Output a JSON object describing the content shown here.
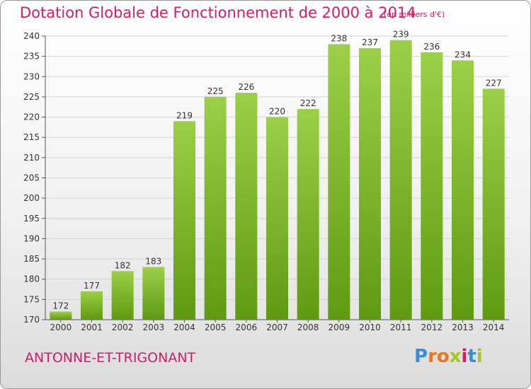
{
  "header": {
    "title": "Dotation Globale de Fonctionnement de 2000 à 2014",
    "subtitle": "(en milliers d'€)"
  },
  "footer": {
    "commune": "ANTONNE-ET-TRIGONANT",
    "logo_letters": [
      "P",
      "r",
      "o",
      "x",
      "i",
      "t",
      "i"
    ]
  },
  "colors": {
    "title": "#cc1f6a",
    "bar_top": "#9ccf48",
    "bar_bottom": "#5f9a12",
    "logo": [
      "#3a8fd4",
      "#e8781f",
      "#e8781f",
      "#a6c82a",
      "#cc1f6a",
      "#3a8fd4",
      "#a6c82a"
    ]
  },
  "chart_data": {
    "type": "bar",
    "title": "Dotation Globale de Fonctionnement de 2000 à 2014",
    "subtitle": "(en milliers d'€)",
    "categories": [
      "2000",
      "2001",
      "2002",
      "2003",
      "2004",
      "2005",
      "2006",
      "2007",
      "2008",
      "2009",
      "2010",
      "2011",
      "2012",
      "2013",
      "2014"
    ],
    "values": [
      172,
      177,
      182,
      183,
      219,
      225,
      226,
      220,
      222,
      238,
      237,
      239,
      236,
      234,
      227
    ],
    "ylim": [
      170,
      240
    ],
    "yticks": [
      170,
      175,
      180,
      185,
      190,
      195,
      200,
      205,
      210,
      215,
      220,
      225,
      230,
      235,
      240
    ],
    "grid": true,
    "xlabel": "",
    "ylabel": ""
  }
}
